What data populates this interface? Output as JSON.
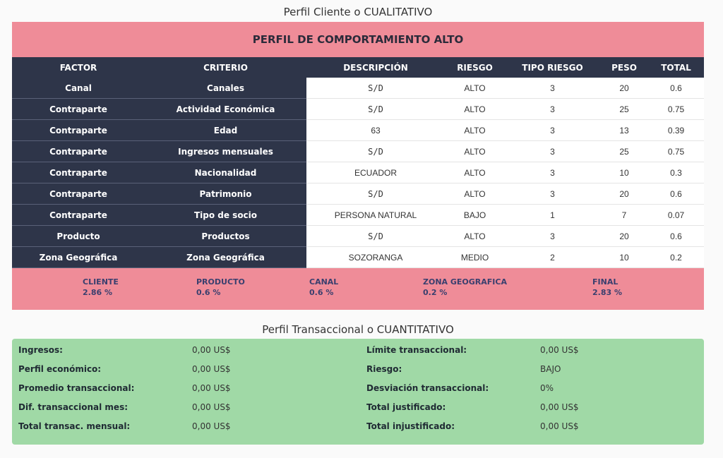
{
  "qualitative": {
    "section_title": "Perfil Cliente o CUALITATIVO",
    "banner_prefix": "PERFIL DE COMPORTAMIENTO ",
    "banner_level": "ALTO",
    "headers": [
      "FACTOR",
      "CRITERIO",
      "DESCRIPCIÓN",
      "RIESGO",
      "TIPO RIESGO",
      "PESO",
      "TOTAL"
    ],
    "rows": [
      {
        "factor": "Canal",
        "criterio": "Canales",
        "descripcion": "S/D",
        "riesgo": "ALTO",
        "tipo": "3",
        "peso": "20",
        "total": "0.6"
      },
      {
        "factor": "Contraparte",
        "criterio": "Actividad Económica",
        "descripcion": "S/D",
        "riesgo": "ALTO",
        "tipo": "3",
        "peso": "25",
        "total": "0.75"
      },
      {
        "factor": "Contraparte",
        "criterio": "Edad",
        "descripcion": "63",
        "riesgo": "ALTO",
        "tipo": "3",
        "peso": "13",
        "total": "0.39"
      },
      {
        "factor": "Contraparte",
        "criterio": "Ingresos mensuales",
        "descripcion": "S/D",
        "riesgo": "ALTO",
        "tipo": "3",
        "peso": "25",
        "total": "0.75"
      },
      {
        "factor": "Contraparte",
        "criterio": "Nacionalidad",
        "descripcion": "ECUADOR",
        "riesgo": "ALTO",
        "tipo": "3",
        "peso": "10",
        "total": "0.3"
      },
      {
        "factor": "Contraparte",
        "criterio": "Patrimonio",
        "descripcion": "S/D",
        "riesgo": "ALTO",
        "tipo": "3",
        "peso": "20",
        "total": "0.6"
      },
      {
        "factor": "Contraparte",
        "criterio": "Tipo de socio",
        "descripcion": "PERSONA NATURAL",
        "riesgo": "BAJO",
        "tipo": "1",
        "peso": "7",
        "total": "0.07"
      },
      {
        "factor": "Producto",
        "criterio": "Productos",
        "descripcion": "S/D",
        "riesgo": "ALTO",
        "tipo": "3",
        "peso": "20",
        "total": "0.6"
      },
      {
        "factor": "Zona Geográfica",
        "criterio": "Zona Geográfica",
        "descripcion": "SOZORANGA",
        "riesgo": "MEDIO",
        "tipo": "2",
        "peso": "10",
        "total": "0.2"
      }
    ],
    "summary": [
      {
        "label": "CLIENTE",
        "value": "2.86 %"
      },
      {
        "label": "PRODUCTO",
        "value": "0.6 %"
      },
      {
        "label": "CANAL",
        "value": "0.6 %"
      },
      {
        "label": "ZONA GEOGRAFICA",
        "value": "0.2 %"
      },
      {
        "label": "FINAL",
        "value": "2.83 %"
      }
    ]
  },
  "quantitative": {
    "section_title": "Perfil Transaccional o CUANTITATIVO",
    "rows": [
      {
        "l1": "Ingresos:",
        "v1": "0,00 US$",
        "l2": "Límite transaccional:",
        "v2": "0,00 US$"
      },
      {
        "l1": "Perfil económico:",
        "v1": "0,00 US$",
        "l2": "Riesgo:",
        "v2": "BAJO"
      },
      {
        "l1": "Promedio transaccional:",
        "v1": "0,00 US$",
        "l2": "Desviación transaccional:",
        "v2": "0%"
      },
      {
        "l1": "Dif. transaccional mes:",
        "v1": "0,00 US$",
        "l2": "Total justificado:",
        "v2": "0,00 US$"
      },
      {
        "l1": "Total transac. mensual:",
        "v1": "0,00 US$",
        "l2": "Total injustificado:",
        "v2": "0,00 US$"
      }
    ]
  }
}
